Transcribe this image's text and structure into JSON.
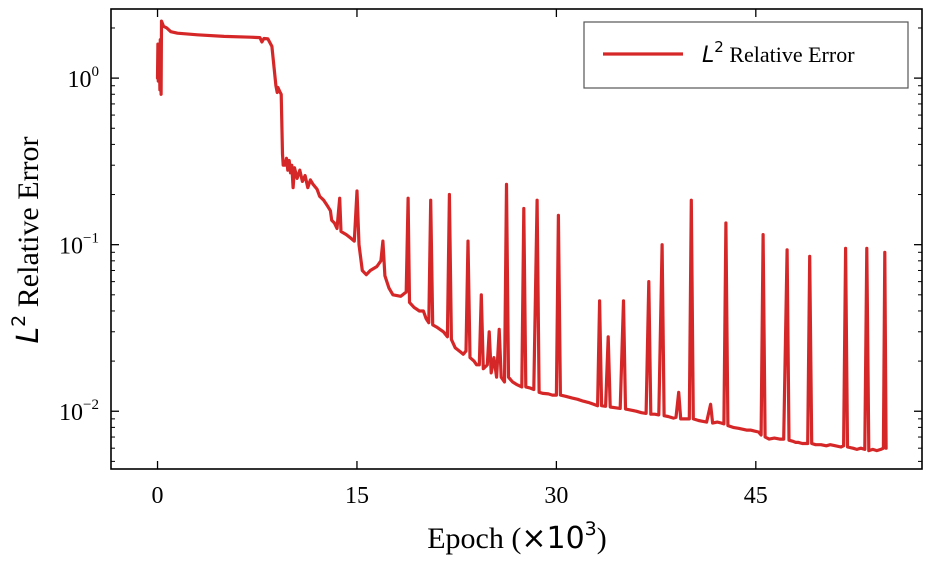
{
  "chart_data": {
    "type": "line",
    "xlabel": {
      "prefix": "Epoch (",
      "multiplier": "×10",
      "exponent": "3",
      "suffix": ")"
    },
    "ylabel": {
      "symbol": "L",
      "exponent": "2",
      "text": " Relative Error"
    },
    "xlim": [
      -3.5,
      57.5
    ],
    "ylim": [
      0.0045,
      2.6
    ],
    "yscale": "log",
    "xticks": [
      {
        "value": 0,
        "label": "0"
      },
      {
        "value": 15,
        "label": "15"
      },
      {
        "value": 30,
        "label": "30"
      },
      {
        "value": 45,
        "label": "45"
      }
    ],
    "yticks": [
      {
        "value": 1,
        "base": "10",
        "exp": "0"
      },
      {
        "value": 0.1,
        "base": "10",
        "exp": "−1"
      },
      {
        "value": 0.01,
        "base": "10",
        "exp": "−2"
      }
    ],
    "legend": {
      "position": "top-right",
      "symbol": "L",
      "exponent": "2",
      "text": " Relative Error"
    },
    "series": [
      {
        "name": "L2 Relative Error",
        "color": "#d62728",
        "points": [
          [
            0.0,
            1.0
          ],
          [
            0.03,
            1.6
          ],
          [
            0.06,
            0.96
          ],
          [
            0.09,
            1.3
          ],
          [
            0.12,
            1.55
          ],
          [
            0.15,
            1.2
          ],
          [
            0.18,
            0.85
          ],
          [
            0.21,
            1.7
          ],
          [
            0.24,
            1.0
          ],
          [
            0.27,
            0.8
          ],
          [
            0.3,
            2.2
          ],
          [
            0.45,
            2.05
          ],
          [
            0.7,
            2.0
          ],
          [
            1.0,
            1.9
          ],
          [
            1.5,
            1.86
          ],
          [
            3.0,
            1.82
          ],
          [
            5.0,
            1.78
          ],
          [
            7.0,
            1.76
          ],
          [
            7.7,
            1.75
          ],
          [
            7.85,
            1.65
          ],
          [
            8.0,
            1.73
          ],
          [
            8.3,
            1.72
          ],
          [
            8.6,
            1.55
          ],
          [
            8.9,
            0.9
          ],
          [
            9.0,
            0.82
          ],
          [
            9.05,
            0.88
          ],
          [
            9.2,
            0.83
          ],
          [
            9.3,
            0.8
          ],
          [
            9.4,
            0.35
          ],
          [
            9.45,
            0.3
          ],
          [
            9.6,
            0.3
          ],
          [
            9.7,
            0.33
          ],
          [
            9.8,
            0.28
          ],
          [
            9.9,
            0.32
          ],
          [
            10.0,
            0.27
          ],
          [
            10.1,
            0.3
          ],
          [
            10.2,
            0.22
          ],
          [
            10.3,
            0.29
          ],
          [
            10.5,
            0.25
          ],
          [
            10.7,
            0.28
          ],
          [
            10.9,
            0.24
          ],
          [
            11.1,
            0.26
          ],
          [
            11.3,
            0.22
          ],
          [
            11.5,
            0.245
          ],
          [
            11.7,
            0.23
          ],
          [
            12.0,
            0.215
          ],
          [
            12.2,
            0.195
          ],
          [
            12.5,
            0.185
          ],
          [
            12.8,
            0.17
          ],
          [
            13.0,
            0.16
          ],
          [
            13.1,
            0.14
          ],
          [
            13.3,
            0.135
          ],
          [
            13.5,
            0.125
          ],
          [
            13.7,
            0.19
          ],
          [
            13.8,
            0.12
          ],
          [
            14.2,
            0.115
          ],
          [
            14.5,
            0.11
          ],
          [
            14.8,
            0.105
          ],
          [
            15.0,
            0.21
          ],
          [
            15.15,
            0.1
          ],
          [
            15.4,
            0.07
          ],
          [
            15.7,
            0.066
          ],
          [
            16.0,
            0.07
          ],
          [
            16.5,
            0.074
          ],
          [
            16.8,
            0.08
          ],
          [
            16.95,
            0.105
          ],
          [
            17.1,
            0.065
          ],
          [
            17.4,
            0.055
          ],
          [
            17.7,
            0.05
          ],
          [
            18.3,
            0.049
          ],
          [
            18.7,
            0.052
          ],
          [
            18.85,
            0.19
          ],
          [
            18.95,
            0.045
          ],
          [
            19.3,
            0.042
          ],
          [
            19.7,
            0.04
          ],
          [
            20.0,
            0.04
          ],
          [
            20.2,
            0.036
          ],
          [
            20.4,
            0.034
          ],
          [
            20.55,
            0.185
          ],
          [
            20.7,
            0.033
          ],
          [
            21.0,
            0.032
          ],
          [
            21.5,
            0.03
          ],
          [
            21.8,
            0.028
          ],
          [
            21.95,
            0.2
          ],
          [
            22.1,
            0.027
          ],
          [
            22.4,
            0.024
          ],
          [
            22.7,
            0.023
          ],
          [
            23.0,
            0.022
          ],
          [
            23.2,
            0.023
          ],
          [
            23.35,
            0.105
          ],
          [
            23.5,
            0.021
          ],
          [
            23.8,
            0.02
          ],
          [
            24.0,
            0.019
          ],
          [
            24.2,
            0.019
          ],
          [
            24.35,
            0.05
          ],
          [
            24.5,
            0.018
          ],
          [
            24.8,
            0.019
          ],
          [
            24.95,
            0.03
          ],
          [
            25.1,
            0.017
          ],
          [
            25.3,
            0.021
          ],
          [
            25.5,
            0.016
          ],
          [
            25.7,
            0.031
          ],
          [
            25.85,
            0.016
          ],
          [
            26.1,
            0.015
          ],
          [
            26.25,
            0.23
          ],
          [
            26.4,
            0.016
          ],
          [
            26.7,
            0.015
          ],
          [
            27.0,
            0.0145
          ],
          [
            27.4,
            0.014
          ],
          [
            27.55,
            0.165
          ],
          [
            27.7,
            0.014
          ],
          [
            28.0,
            0.0138
          ],
          [
            28.3,
            0.0135
          ],
          [
            28.55,
            0.185
          ],
          [
            28.7,
            0.013
          ],
          [
            29.0,
            0.0128
          ],
          [
            29.4,
            0.0127
          ],
          [
            29.7,
            0.0125
          ],
          [
            30.0,
            0.0125
          ],
          [
            30.15,
            0.15
          ],
          [
            30.3,
            0.0125
          ],
          [
            30.7,
            0.0123
          ],
          [
            31.2,
            0.012
          ],
          [
            31.6,
            0.0118
          ],
          [
            32.0,
            0.0115
          ],
          [
            32.4,
            0.0113
          ],
          [
            32.8,
            0.011
          ],
          [
            33.1,
            0.0108
          ],
          [
            33.25,
            0.046
          ],
          [
            33.4,
            0.0108
          ],
          [
            33.7,
            0.0107
          ],
          [
            33.9,
            0.028
          ],
          [
            34.05,
            0.0106
          ],
          [
            34.4,
            0.0105
          ],
          [
            34.8,
            0.0104
          ],
          [
            35.05,
            0.046
          ],
          [
            35.2,
            0.0103
          ],
          [
            35.5,
            0.0102
          ],
          [
            36.0,
            0.01
          ],
          [
            36.4,
            0.0098
          ],
          [
            36.75,
            0.0097
          ],
          [
            36.95,
            0.06
          ],
          [
            37.1,
            0.0096
          ],
          [
            37.4,
            0.0096
          ],
          [
            37.7,
            0.0095
          ],
          [
            37.95,
            0.1
          ],
          [
            38.1,
            0.0094
          ],
          [
            38.4,
            0.0093
          ],
          [
            38.8,
            0.0091
          ],
          [
            39.0,
            0.0092
          ],
          [
            39.2,
            0.013
          ],
          [
            39.35,
            0.009
          ],
          [
            39.7,
            0.009
          ],
          [
            40.0,
            0.009
          ],
          [
            40.15,
            0.185
          ],
          [
            40.3,
            0.009
          ],
          [
            40.7,
            0.0088
          ],
          [
            41.0,
            0.0087
          ],
          [
            41.3,
            0.0086
          ],
          [
            41.6,
            0.011
          ],
          [
            41.75,
            0.0085
          ],
          [
            42.1,
            0.0086
          ],
          [
            42.4,
            0.0085
          ],
          [
            42.6,
            0.0084
          ],
          [
            42.75,
            0.135
          ],
          [
            42.9,
            0.0082
          ],
          [
            43.3,
            0.008
          ],
          [
            43.7,
            0.0079
          ],
          [
            44.0,
            0.0078
          ],
          [
            44.3,
            0.0077
          ],
          [
            44.6,
            0.0077
          ],
          [
            44.9,
            0.0076
          ],
          [
            45.2,
            0.0075
          ],
          [
            45.4,
            0.0072
          ],
          [
            45.55,
            0.115
          ],
          [
            45.7,
            0.007
          ],
          [
            46.0,
            0.0068
          ],
          [
            46.4,
            0.0069
          ],
          [
            46.8,
            0.0068
          ],
          [
            47.1,
            0.0068
          ],
          [
            47.35,
            0.093
          ],
          [
            47.5,
            0.0067
          ],
          [
            47.8,
            0.0066
          ],
          [
            48.0,
            0.0065
          ],
          [
            48.2,
            0.0065
          ],
          [
            48.5,
            0.0064
          ],
          [
            48.9,
            0.0064
          ],
          [
            49.05,
            0.085
          ],
          [
            49.2,
            0.0064
          ],
          [
            49.5,
            0.0063
          ],
          [
            49.9,
            0.0063
          ],
          [
            50.3,
            0.0062
          ],
          [
            50.6,
            0.0063
          ],
          [
            51.0,
            0.0062
          ],
          [
            51.4,
            0.0061
          ],
          [
            51.6,
            0.0062
          ],
          [
            51.75,
            0.095
          ],
          [
            51.9,
            0.0061
          ],
          [
            52.3,
            0.006
          ],
          [
            52.6,
            0.0059
          ],
          [
            52.9,
            0.006
          ],
          [
            53.2,
            0.0059
          ],
          [
            53.35,
            0.095
          ],
          [
            53.5,
            0.0058
          ],
          [
            53.8,
            0.0059
          ],
          [
            54.1,
            0.0058
          ],
          [
            54.4,
            0.0059
          ],
          [
            54.6,
            0.006
          ],
          [
            54.7,
            0.09
          ],
          [
            54.8,
            0.006
          ]
        ]
      }
    ]
  }
}
